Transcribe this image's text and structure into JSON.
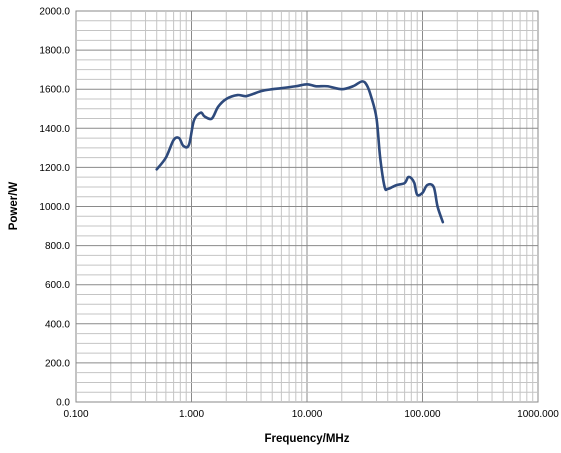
{
  "chart_data": {
    "type": "line",
    "title": "",
    "xlabel": "Frequency/MHz",
    "ylabel": "Power/W",
    "x_scale": "log",
    "xlim": [
      0.1,
      1000
    ],
    "ylim": [
      0,
      2000
    ],
    "x_ticks": [
      "0.100",
      "1.000",
      "10.000",
      "100.000",
      "1000.000"
    ],
    "y_ticks": [
      "0.0",
      "200.0",
      "400.0",
      "600.0",
      "800.0",
      "1000.0",
      "1200.0",
      "1400.0",
      "1600.0",
      "1800.0",
      "2000.0"
    ],
    "grid": true,
    "line_color": "#2e4a7c",
    "series": [
      {
        "x": [
          0.5,
          0.6,
          0.7,
          0.78,
          0.85,
          0.95,
          1.05,
          1.2,
          1.3,
          1.5,
          1.7,
          2.0,
          2.5,
          3.0,
          4.0,
          5.0,
          6.0,
          8.0,
          10.0,
          12.0,
          15.0,
          20.0,
          25.0,
          30.0,
          33.0,
          36.0,
          40.0,
          43.0,
          47.0,
          50.0,
          55.0,
          60.0,
          70.0,
          75.0,
          80.0,
          85.0,
          90.0,
          100.0,
          110.0,
          125.0,
          135.0,
          150.0
        ],
        "y": [
          1190,
          1250,
          1340,
          1350,
          1310,
          1315,
          1440,
          1480,
          1460,
          1450,
          1510,
          1550,
          1570,
          1565,
          1590,
          1600,
          1605,
          1615,
          1625,
          1615,
          1615,
          1600,
          1615,
          1640,
          1620,
          1560,
          1450,
          1250,
          1100,
          1090,
          1100,
          1110,
          1120,
          1150,
          1145,
          1120,
          1060,
          1070,
          1110,
          1100,
          1000,
          920
        ]
      }
    ]
  }
}
